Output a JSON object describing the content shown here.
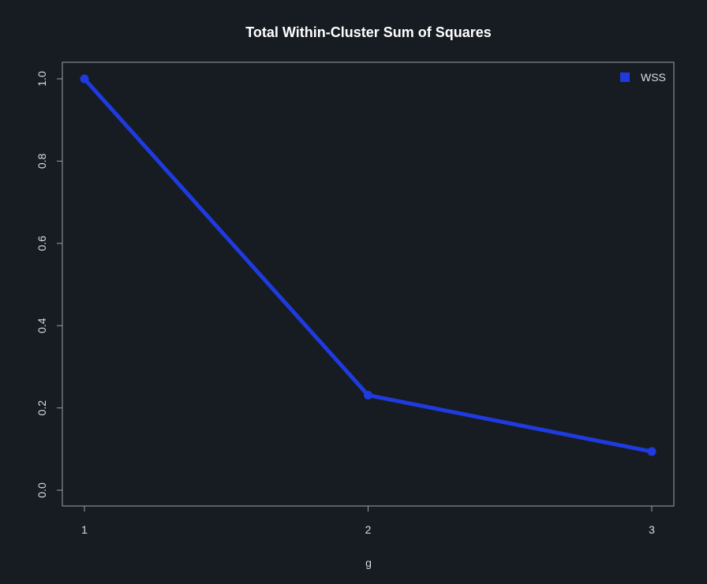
{
  "chart_data": {
    "type": "line",
    "title": "Total Within-Cluster Sum of Squares",
    "xlabel": "g",
    "ylabel": "",
    "x": [
      1,
      2,
      3
    ],
    "x_tick_labels": [
      "1",
      "2",
      "3"
    ],
    "xlim": [
      1,
      3
    ],
    "ylim": [
      0,
      1
    ],
    "y_ticks": [
      0,
      0.2,
      0.4,
      0.6,
      0.8,
      1
    ],
    "y_tick_labels": [
      "0.0",
      "0.2",
      "0.4",
      "0.6",
      "0.8",
      "1.0"
    ],
    "series": [
      {
        "name": "WSS",
        "values": [
          1.0,
          0.231,
          0.094
        ],
        "color": "#1f3be0"
      }
    ],
    "legend": {
      "position": "top-right",
      "entries": [
        "WSS"
      ]
    },
    "grid": false
  },
  "colors": {
    "background": "#171c22",
    "axis": "#9aa1a9",
    "text": "#d9dde2",
    "title": "#ffffff",
    "series": "#1f3be0"
  }
}
